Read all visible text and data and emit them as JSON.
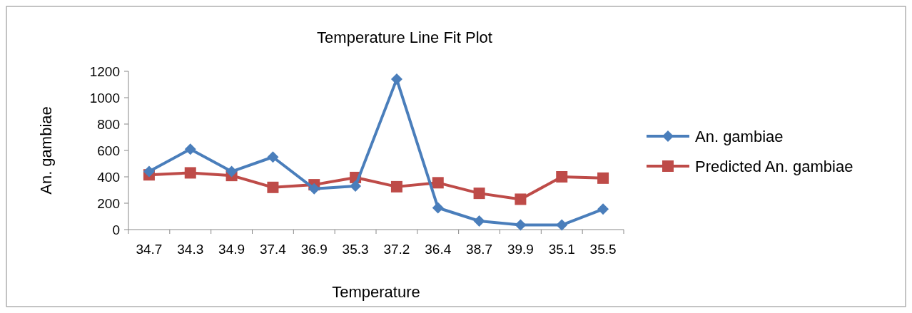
{
  "chart_data": {
    "type": "line",
    "title": "Temperature Line Fit  Plot",
    "xlabel": "Temperature",
    "ylabel": "An. gambiae",
    "categories": [
      "34.7",
      "34.3",
      "34.9",
      "37.4",
      "36.9",
      "35.3",
      "37.2",
      "36.4",
      "38.7",
      "39.9",
      "35.1",
      "35.5"
    ],
    "series": [
      {
        "name": "An. gambiae",
        "color": "#4a7ebb",
        "marker": "diamond",
        "values": [
          440,
          610,
          440,
          550,
          310,
          330,
          1140,
          165,
          65,
          35,
          35,
          155
        ]
      },
      {
        "name": "Predicted An. gambiae",
        "color": "#be4b48",
        "marker": "square",
        "values": [
          415,
          430,
          410,
          320,
          340,
          395,
          325,
          355,
          275,
          230,
          400,
          390
        ]
      }
    ],
    "ylim": [
      0,
      1200
    ],
    "yticks": [
      0,
      200,
      400,
      600,
      800,
      1000,
      1200
    ],
    "grid": false,
    "legend": "right"
  }
}
